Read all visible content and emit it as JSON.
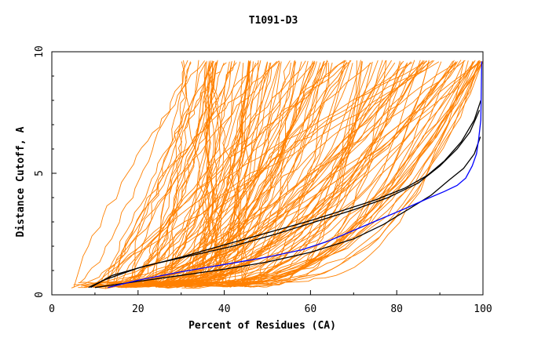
{
  "chart_data": {
    "type": "line",
    "title": "T1091-D3",
    "xlabel": "Percent of Residues (CA)",
    "ylabel": "Distance Cutoff, A",
    "xlim": [
      0,
      100
    ],
    "ylim": [
      0,
      10
    ],
    "x_ticks": [
      "0",
      "20",
      "40",
      "60",
      "80",
      "100"
    ],
    "y_ticks": [
      "0",
      "5",
      "10"
    ],
    "grid": false,
    "legend": "none",
    "colors": {
      "models": "#ff8000",
      "highlight_black": "#000000",
      "highlight_blue": "#0000ff",
      "axis": "#000000",
      "background": "#ffffff"
    },
    "series": [
      {
        "color": "#000000",
        "x": [
          8.5,
          12,
          20,
          30,
          40,
          50,
          60,
          68,
          75,
          82,
          87,
          91,
          95,
          98,
          99.5
        ],
        "y": [
          0.3,
          0.6,
          1.1,
          1.55,
          2.05,
          2.55,
          3.05,
          3.5,
          3.9,
          4.4,
          4.9,
          5.5,
          6.3,
          7.2,
          8.0
        ]
      },
      {
        "color": "#000000",
        "x": [
          9,
          14,
          22,
          32,
          42,
          52,
          62,
          70,
          78,
          85,
          90,
          94,
          97,
          99.2
        ],
        "y": [
          0.3,
          0.8,
          1.2,
          1.6,
          2.0,
          2.5,
          3.05,
          3.5,
          4.0,
          4.6,
          5.3,
          6.0,
          6.7,
          7.6
        ]
      },
      {
        "color": "#000000",
        "x": [
          10,
          20,
          30,
          40,
          50,
          60,
          70,
          77,
          83,
          88,
          92,
          95.5,
          98,
          99.4
        ],
        "y": [
          0.3,
          0.55,
          0.8,
          1.05,
          1.35,
          1.75,
          2.3,
          2.9,
          3.55,
          4.1,
          4.7,
          5.2,
          5.8,
          6.5
        ]
      },
      {
        "color": "#0000ff",
        "x": [
          13,
          20,
          30,
          40,
          50,
          58,
          64,
          70,
          76,
          82,
          87,
          91,
          94,
          96,
          97.5,
          98.5,
          99,
          99.5,
          99.7
        ],
        "y": [
          0.3,
          0.6,
          0.95,
          1.25,
          1.55,
          1.85,
          2.2,
          2.65,
          3.1,
          3.55,
          3.95,
          4.25,
          4.5,
          4.8,
          5.3,
          5.8,
          6.4,
          7.2,
          9.6
        ]
      }
    ],
    "orange_model_count": 150
  }
}
